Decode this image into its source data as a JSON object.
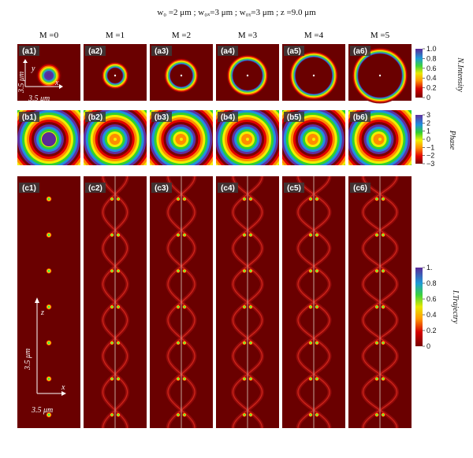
{
  "figure": {
    "title": "w₀ =2 μm ; w₀ₓ=3 μm ; w₀ᵧ=3 μm ; z =9.0 μm",
    "columns": [
      "M =0",
      "M =1",
      "M =2",
      "M =3",
      "M =4",
      "M =5"
    ],
    "row_a_labels": [
      "(a1)",
      "(a2)",
      "(a3)",
      "(a4)",
      "(a5)",
      "(a6)"
    ],
    "row_b_labels": [
      "(b1)",
      "(b2)",
      "(b3)",
      "(b4)",
      "(b5)",
      "(b6)"
    ],
    "row_c_labels": [
      "(c1)",
      "(c2)",
      "(c3)",
      "(c4)",
      "(c5)",
      "(c6)"
    ],
    "axes_a": {
      "x": "x",
      "y": "y",
      "scale_x": "3.5 μm",
      "scale_y": "3.5 μm"
    },
    "axes_c": {
      "x": "x",
      "z": "z",
      "scale_x": "3.5 μm",
      "scale_z": "3.5 μm"
    },
    "colorbar_a": {
      "title": "N.Intensity",
      "ticks": [
        "1.0",
        "0.8",
        "0.6",
        "0.4",
        "0.2",
        "0"
      ]
    },
    "colorbar_b": {
      "title": "Phase",
      "ticks": [
        "3",
        "2",
        "1",
        "0",
        "−1",
        "−2",
        "−3"
      ]
    },
    "colorbar_c": {
      "title": "I.Trajectry",
      "ticks": [
        "1.",
        "0.8",
        "0.6",
        "0.4",
        "0.2",
        "0"
      ]
    },
    "colors": {
      "background": "#8b0000",
      "ring": "rainbow"
    }
  }
}
